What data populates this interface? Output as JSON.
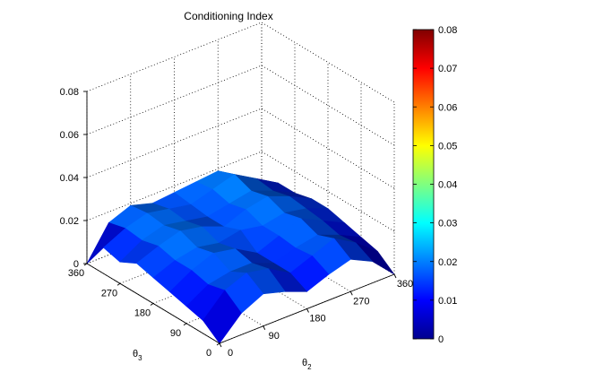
{
  "chart_data": {
    "type": "surface",
    "title": "Conditioning Index",
    "xlabel": "θ2",
    "xlabel_base": "θ",
    "xlabel_sub": "2",
    "ylabel": "θ3",
    "ylabel_base": "θ",
    "ylabel_sub": "3",
    "zlabel": "",
    "x_ticks": [
      "0",
      "90",
      "180",
      "270",
      "360"
    ],
    "y_ticks": [
      "0",
      "90",
      "180",
      "270",
      "360"
    ],
    "z_ticks": [
      "0",
      "0.02",
      "0.04",
      "0.06",
      "0.08"
    ],
    "xlim": [
      0,
      360
    ],
    "ylim": [
      0,
      360
    ],
    "zlim": [
      0,
      0.08
    ],
    "grid": true,
    "colormap": "jet",
    "colorbar": {
      "ticks": [
        "0",
        "0.01",
        "0.02",
        "0.03",
        "0.04",
        "0.05",
        "0.06",
        "0.07",
        "0.08"
      ],
      "range": [
        0,
        0.08
      ],
      "position": "right"
    },
    "surface": {
      "x": [
        0,
        45,
        90,
        135,
        180,
        225,
        270,
        315,
        360
      ],
      "y": [
        0,
        45,
        90,
        135,
        180,
        225,
        270,
        315,
        360
      ],
      "z": [
        [
          0.0,
          0.01,
          0.015,
          0.012,
          0.008,
          0.012,
          0.015,
          0.01,
          0.0
        ],
        [
          0.006,
          0.016,
          0.02,
          0.018,
          0.012,
          0.016,
          0.02,
          0.014,
          0.006
        ],
        [
          0.008,
          0.014,
          0.016,
          0.016,
          0.012,
          0.015,
          0.017,
          0.013,
          0.008
        ],
        [
          0.01,
          0.016,
          0.02,
          0.018,
          0.012,
          0.016,
          0.02,
          0.015,
          0.01
        ],
        [
          0.012,
          0.016,
          0.018,
          0.016,
          0.018,
          0.016,
          0.018,
          0.016,
          0.012
        ],
        [
          0.014,
          0.018,
          0.021,
          0.019,
          0.015,
          0.019,
          0.021,
          0.017,
          0.012
        ],
        [
          0.01,
          0.016,
          0.019,
          0.017,
          0.015,
          0.017,
          0.019,
          0.015,
          0.01
        ],
        [
          0.012,
          0.017,
          0.02,
          0.018,
          0.016,
          0.019,
          0.022,
          0.016,
          0.01
        ],
        [
          0.0,
          0.015,
          0.019,
          0.016,
          0.017,
          0.018,
          0.019,
          0.012,
          0.0
        ]
      ]
    }
  }
}
